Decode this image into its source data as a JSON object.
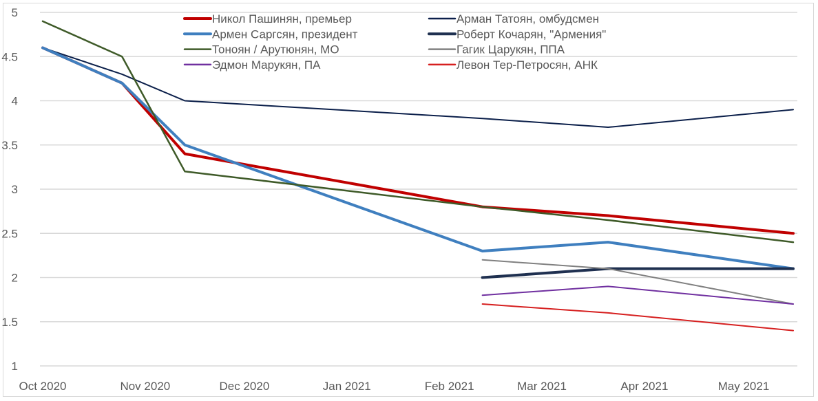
{
  "chart_data": {
    "type": "line",
    "title": "",
    "xlabel": "",
    "ylabel": "",
    "ylim": [
      1,
      5
    ],
    "yticks": [
      "1",
      "1.5",
      "2",
      "2.5",
      "3",
      "3.5",
      "4",
      "4.5",
      "5"
    ],
    "xlim": [
      "2020-10-01",
      "2021-05-16"
    ],
    "xtick_dates": [
      "2020-10-01",
      "2020-11-01",
      "2020-12-01",
      "2021-01-01",
      "2021-02-01",
      "2021-03-01",
      "2021-04-01",
      "2021-05-01"
    ],
    "xtick_labels": [
      "Oct 2020",
      "Nov 2020",
      "Dec 2020",
      "Jan 2021",
      "Feb 2021",
      "Mar 2021",
      "Apr 2021",
      "May 2021"
    ],
    "grid": "horizontal",
    "legend_placement": "top-center",
    "x": [
      "2020-10-01",
      "2020-10-25",
      "2020-11-13",
      "2021-02-11",
      "2021-03-21",
      "2021-05-16"
    ],
    "series": [
      {
        "name": "Никол Пашинян, премьер",
        "color": "#c00000",
        "width": 4,
        "values": [
          4.6,
          4.2,
          3.4,
          2.8,
          2.7,
          2.5
        ]
      },
      {
        "name": "Арман Татоян, омбудсмен",
        "color": "#0b1f4a",
        "width": 2,
        "values": [
          4.6,
          4.3,
          4.0,
          3.8,
          3.7,
          3.9
        ]
      },
      {
        "name": "Армен Саргсян, президент",
        "color": "#3f7fbf",
        "width": 4,
        "values": [
          4.6,
          4.2,
          3.5,
          2.3,
          2.4,
          2.1
        ]
      },
      {
        "name": "Роберт Кочарян, \"Армения\"",
        "color": "#1f3050",
        "width": 4,
        "values": [
          null,
          null,
          null,
          2.0,
          2.1,
          2.1
        ]
      },
      {
        "name": "Тоноян / Арутюнян, МО",
        "color": "#3e5a28",
        "width": 2.5,
        "values": [
          4.9,
          4.5,
          3.2,
          2.8,
          2.65,
          2.4
        ]
      },
      {
        "name": "Гагик Царукян, ППА",
        "color": "#808080",
        "width": 2,
        "values": [
          null,
          null,
          null,
          2.2,
          2.1,
          1.7
        ]
      },
      {
        "name": "Эдмон Марукян, ПА",
        "color": "#7030a0",
        "width": 2,
        "values": [
          null,
          null,
          null,
          1.8,
          1.9,
          1.7
        ]
      },
      {
        "name": "Левон Тер-Петросян, АНК",
        "color": "#d62020",
        "width": 2,
        "values": [
          null,
          null,
          null,
          1.7,
          1.6,
          1.4
        ]
      }
    ]
  }
}
